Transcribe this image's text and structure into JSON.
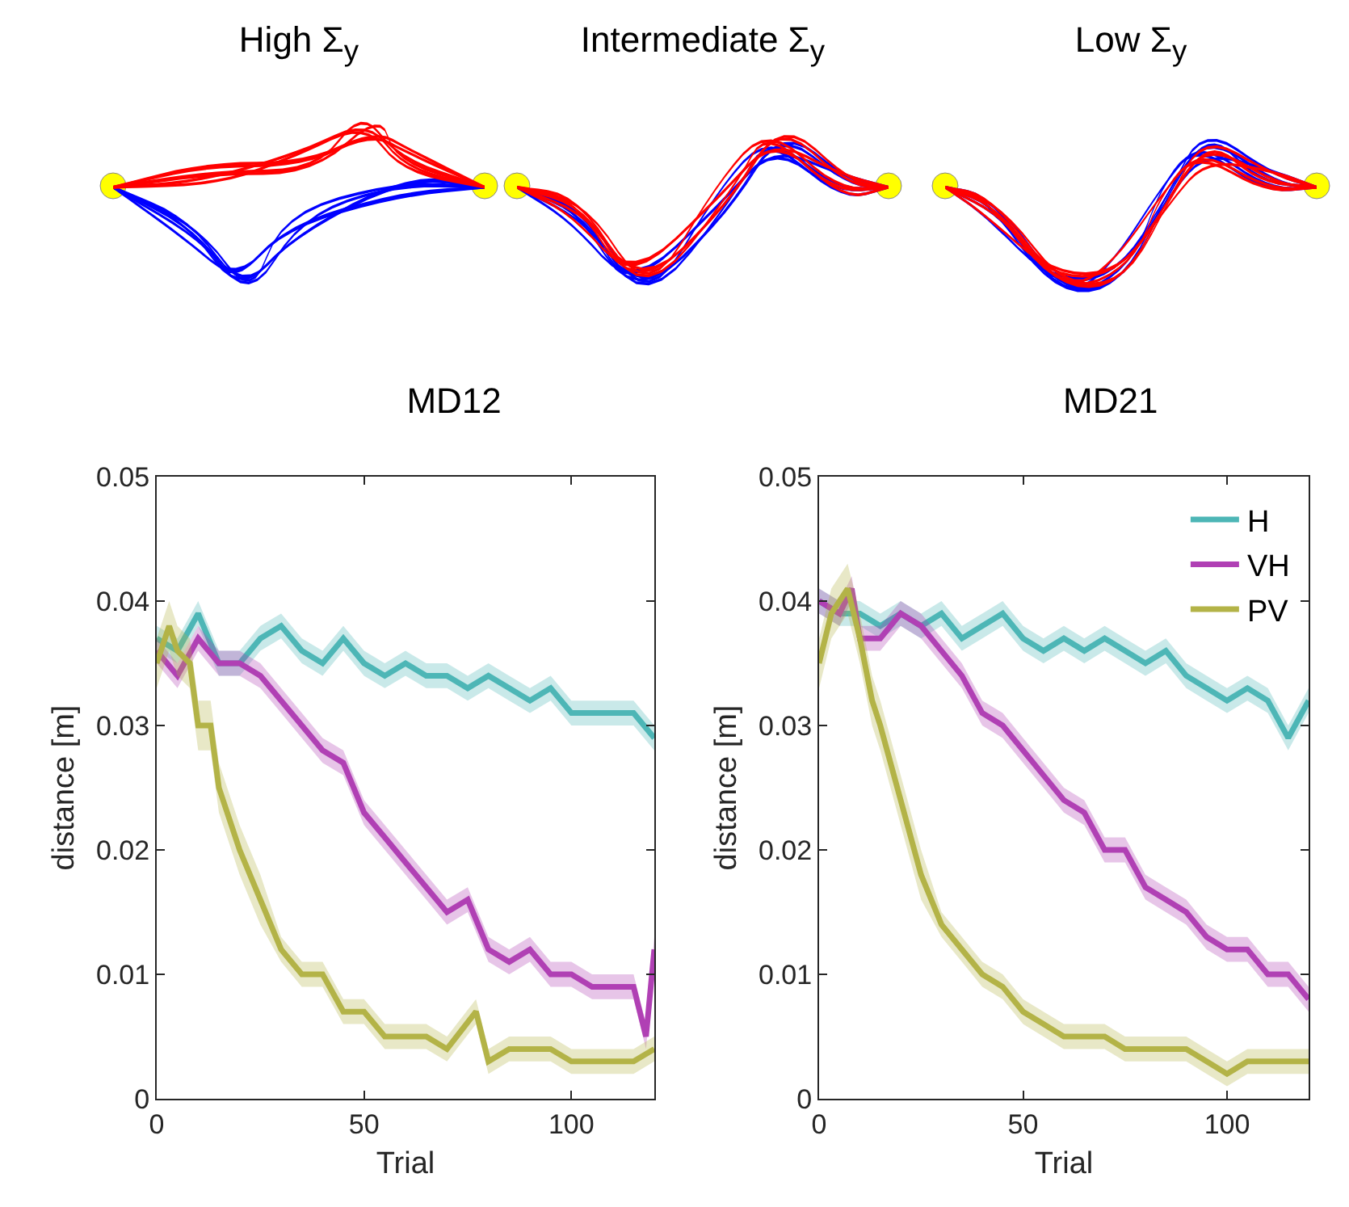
{
  "chart_data": [
    {
      "type": "other",
      "title": "High Σ$_{y}$"
    },
    {
      "type": "other",
      "title": "Intermediate Σ$_{y}$"
    },
    {
      "type": "other",
      "title": "Low Σ$_{y}$"
    },
    {
      "type": "line",
      "title": "MD12",
      "xlabel": "Trial",
      "ylabel": "distance [m]",
      "xlim": [
        0,
        120
      ],
      "xticks": [
        0,
        50,
        100
      ],
      "ylim": [
        0,
        0.05
      ],
      "yticks": [
        0,
        0.01,
        0.02,
        0.03,
        0.04,
        0.05
      ],
      "grid": false,
      "legend": false,
      "series": [
        {
          "color": "#4db6b6",
          "x": [
            0,
            5,
            10,
            15,
            20,
            25,
            30,
            35,
            40,
            45,
            50,
            55,
            60,
            65,
            70,
            75,
            80,
            85,
            90,
            95,
            100,
            105,
            110,
            115,
            120
          ],
          "values": [
            0.037,
            0.036,
            0.039,
            0.035,
            0.035,
            0.037,
            0.038,
            0.036,
            0.035,
            0.037,
            0.035,
            0.034,
            0.035,
            0.034,
            0.034,
            0.033,
            0.034,
            0.033,
            0.032,
            0.033,
            0.031,
            0.031,
            0.031,
            0.031,
            0.029
          ],
          "lower": [
            0.036,
            0.035,
            0.038,
            0.034,
            0.034,
            0.036,
            0.037,
            0.035,
            0.034,
            0.036,
            0.034,
            0.033,
            0.034,
            0.033,
            0.033,
            0.032,
            0.033,
            0.032,
            0.031,
            0.032,
            0.03,
            0.03,
            0.03,
            0.03,
            0.028
          ],
          "upper": [
            0.038,
            0.037,
            0.04,
            0.036,
            0.036,
            0.038,
            0.039,
            0.037,
            0.036,
            0.038,
            0.036,
            0.035,
            0.036,
            0.035,
            0.035,
            0.034,
            0.035,
            0.034,
            0.033,
            0.034,
            0.032,
            0.032,
            0.032,
            0.032,
            0.03
          ]
        },
        {
          "color": "#b040b4",
          "x": [
            0,
            5,
            10,
            15,
            20,
            25,
            30,
            35,
            40,
            45,
            50,
            55,
            60,
            65,
            70,
            75,
            80,
            85,
            90,
            95,
            100,
            105,
            110,
            115,
            118,
            120
          ],
          "values": [
            0.036,
            0.034,
            0.037,
            0.035,
            0.035,
            0.034,
            0.032,
            0.03,
            0.028,
            0.027,
            0.023,
            0.021,
            0.019,
            0.017,
            0.015,
            0.016,
            0.012,
            0.011,
            0.012,
            0.01,
            0.01,
            0.009,
            0.009,
            0.009,
            0.005,
            0.012
          ],
          "lower": [
            0.035,
            0.033,
            0.036,
            0.034,
            0.034,
            0.033,
            0.031,
            0.029,
            0.027,
            0.026,
            0.022,
            0.02,
            0.018,
            0.016,
            0.014,
            0.015,
            0.011,
            0.01,
            0.011,
            0.009,
            0.009,
            0.008,
            0.008,
            0.008,
            0.004,
            0.011
          ],
          "upper": [
            0.037,
            0.035,
            0.038,
            0.036,
            0.036,
            0.035,
            0.033,
            0.031,
            0.029,
            0.028,
            0.024,
            0.022,
            0.02,
            0.018,
            0.016,
            0.017,
            0.013,
            0.012,
            0.013,
            0.011,
            0.011,
            0.01,
            0.01,
            0.01,
            0.006,
            0.013
          ]
        },
        {
          "color": "#b3b347",
          "x": [
            0,
            3,
            5,
            8,
            10,
            13,
            15,
            20,
            25,
            30,
            35,
            40,
            45,
            50,
            55,
            60,
            65,
            70,
            77,
            80,
            85,
            90,
            95,
            100,
            105,
            110,
            115,
            120
          ],
          "values": [
            0.035,
            0.038,
            0.036,
            0.035,
            0.03,
            0.03,
            0.025,
            0.02,
            0.016,
            0.012,
            0.01,
            0.01,
            0.007,
            0.007,
            0.005,
            0.005,
            0.005,
            0.004,
            0.007,
            0.003,
            0.004,
            0.004,
            0.004,
            0.003,
            0.003,
            0.003,
            0.003,
            0.004
          ],
          "lower": [
            0.033,
            0.036,
            0.034,
            0.033,
            0.028,
            0.028,
            0.023,
            0.018,
            0.014,
            0.011,
            0.009,
            0.009,
            0.006,
            0.006,
            0.004,
            0.004,
            0.004,
            0.003,
            0.006,
            0.002,
            0.003,
            0.003,
            0.003,
            0.002,
            0.002,
            0.002,
            0.002,
            0.003
          ],
          "upper": [
            0.037,
            0.04,
            0.038,
            0.037,
            0.032,
            0.032,
            0.027,
            0.022,
            0.018,
            0.013,
            0.011,
            0.011,
            0.008,
            0.008,
            0.006,
            0.006,
            0.006,
            0.005,
            0.008,
            0.004,
            0.005,
            0.005,
            0.005,
            0.004,
            0.004,
            0.004,
            0.004,
            0.005
          ]
        }
      ]
    },
    {
      "type": "line",
      "title": "MD21",
      "xlabel": "Trial",
      "ylabel": "distance [m]",
      "xlim": [
        0,
        120
      ],
      "xticks": [
        0,
        50,
        100
      ],
      "ylim": [
        0,
        0.05
      ],
      "yticks": [
        0,
        0.01,
        0.02,
        0.03,
        0.04,
        0.05
      ],
      "grid": false,
      "legend": "top right",
      "series": [
        {
          "name": "H",
          "color": "#4db6b6",
          "x": [
            0,
            5,
            10,
            15,
            20,
            25,
            30,
            35,
            40,
            45,
            50,
            55,
            60,
            65,
            70,
            75,
            80,
            85,
            90,
            95,
            100,
            105,
            110,
            115,
            120
          ],
          "values": [
            0.04,
            0.039,
            0.039,
            0.038,
            0.039,
            0.038,
            0.039,
            0.037,
            0.038,
            0.039,
            0.037,
            0.036,
            0.037,
            0.036,
            0.037,
            0.036,
            0.035,
            0.036,
            0.034,
            0.033,
            0.032,
            0.033,
            0.032,
            0.029,
            0.032
          ],
          "lower": [
            0.039,
            0.038,
            0.038,
            0.037,
            0.038,
            0.037,
            0.038,
            0.036,
            0.037,
            0.038,
            0.036,
            0.035,
            0.036,
            0.035,
            0.036,
            0.035,
            0.034,
            0.035,
            0.033,
            0.032,
            0.031,
            0.032,
            0.031,
            0.028,
            0.031
          ],
          "upper": [
            0.041,
            0.04,
            0.04,
            0.039,
            0.04,
            0.039,
            0.04,
            0.038,
            0.039,
            0.04,
            0.038,
            0.037,
            0.038,
            0.037,
            0.038,
            0.037,
            0.036,
            0.037,
            0.035,
            0.034,
            0.033,
            0.034,
            0.033,
            0.03,
            0.033
          ]
        },
        {
          "name": "VH",
          "color": "#b040b4",
          "x": [
            0,
            5,
            8,
            10,
            15,
            20,
            25,
            30,
            35,
            40,
            45,
            50,
            55,
            60,
            65,
            70,
            75,
            80,
            85,
            90,
            95,
            100,
            105,
            110,
            115,
            120
          ],
          "values": [
            0.04,
            0.039,
            0.041,
            0.037,
            0.037,
            0.039,
            0.038,
            0.036,
            0.034,
            0.031,
            0.03,
            0.028,
            0.026,
            0.024,
            0.023,
            0.02,
            0.02,
            0.017,
            0.016,
            0.015,
            0.013,
            0.012,
            0.012,
            0.01,
            0.01,
            0.008
          ],
          "lower": [
            0.039,
            0.038,
            0.04,
            0.036,
            0.036,
            0.038,
            0.037,
            0.035,
            0.033,
            0.03,
            0.029,
            0.027,
            0.025,
            0.023,
            0.022,
            0.019,
            0.019,
            0.016,
            0.015,
            0.014,
            0.012,
            0.011,
            0.011,
            0.009,
            0.009,
            0.007
          ],
          "upper": [
            0.041,
            0.04,
            0.042,
            0.038,
            0.038,
            0.04,
            0.039,
            0.037,
            0.035,
            0.032,
            0.031,
            0.029,
            0.027,
            0.025,
            0.024,
            0.021,
            0.021,
            0.018,
            0.017,
            0.016,
            0.014,
            0.013,
            0.013,
            0.011,
            0.011,
            0.009
          ]
        },
        {
          "name": "PV",
          "color": "#b3b347",
          "x": [
            0,
            3,
            7,
            10,
            13,
            15,
            20,
            25,
            30,
            35,
            40,
            45,
            50,
            55,
            60,
            65,
            70,
            75,
            80,
            85,
            90,
            95,
            100,
            105,
            110,
            115,
            120
          ],
          "values": [
            0.035,
            0.039,
            0.041,
            0.037,
            0.032,
            0.03,
            0.024,
            0.018,
            0.014,
            0.012,
            0.01,
            0.009,
            0.007,
            0.006,
            0.005,
            0.005,
            0.005,
            0.004,
            0.004,
            0.004,
            0.004,
            0.003,
            0.002,
            0.003,
            0.003,
            0.003,
            0.003
          ],
          "lower": [
            0.033,
            0.037,
            0.039,
            0.035,
            0.03,
            0.028,
            0.022,
            0.016,
            0.013,
            0.011,
            0.009,
            0.008,
            0.006,
            0.005,
            0.004,
            0.004,
            0.004,
            0.003,
            0.003,
            0.003,
            0.003,
            0.002,
            0.001,
            0.002,
            0.002,
            0.002,
            0.002
          ],
          "upper": [
            0.037,
            0.041,
            0.043,
            0.039,
            0.034,
            0.032,
            0.026,
            0.02,
            0.015,
            0.013,
            0.011,
            0.01,
            0.008,
            0.007,
            0.006,
            0.006,
            0.006,
            0.005,
            0.005,
            0.005,
            0.005,
            0.004,
            0.003,
            0.004,
            0.004,
            0.004,
            0.004
          ]
        }
      ]
    }
  ]
}
